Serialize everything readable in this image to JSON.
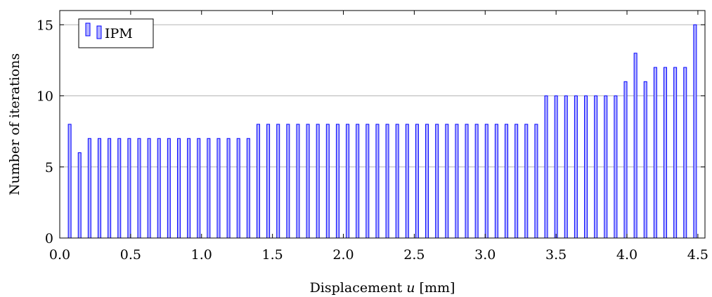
{
  "chart_data": {
    "type": "bar",
    "title": "",
    "xlabel": "Displacement ",
    "xlabel_var": "u",
    "xlabel_unit": " [mm]",
    "ylabel": "Number of iterations",
    "xlim": [
      0,
      4.55
    ],
    "ylim": [
      0,
      16
    ],
    "x_ticks": [
      "0.0",
      "0.5",
      "1.0",
      "1.5",
      "2.0",
      "2.5",
      "3.0",
      "3.5",
      "4.0",
      "4.5"
    ],
    "x_tick_values": [
      0,
      0.5,
      1.0,
      1.5,
      2.0,
      2.5,
      3.0,
      3.5,
      4.0,
      4.5
    ],
    "y_ticks": [
      "0",
      "5",
      "10",
      "15"
    ],
    "y_tick_values": [
      0,
      5,
      10,
      15
    ],
    "grid": "horizontal",
    "legend_position": "top-left",
    "series": [
      {
        "name": "IPM",
        "color": "#b3b3ff",
        "edge_color": "#0000ff",
        "x": [
          0.07,
          0.14,
          0.21,
          0.28,
          0.35,
          0.42,
          0.49,
          0.56,
          0.63,
          0.7,
          0.77,
          0.84,
          0.91,
          0.98,
          1.05,
          1.12,
          1.19,
          1.26,
          1.33,
          1.4,
          1.47,
          1.54,
          1.61,
          1.68,
          1.75,
          1.82,
          1.89,
          1.96,
          2.03,
          2.1,
          2.17,
          2.24,
          2.31,
          2.38,
          2.45,
          2.52,
          2.59,
          2.66,
          2.73,
          2.8,
          2.87,
          2.94,
          3.01,
          3.08,
          3.15,
          3.22,
          3.29,
          3.36,
          3.43,
          3.5,
          3.57,
          3.64,
          3.71,
          3.78,
          3.85,
          3.92,
          3.99,
          4.06,
          4.13,
          4.2,
          4.27,
          4.34,
          4.41,
          4.48
        ],
        "values": [
          8,
          6,
          7,
          7,
          7,
          7,
          7,
          7,
          7,
          7,
          7,
          7,
          7,
          7,
          7,
          7,
          7,
          7,
          7,
          8,
          8,
          8,
          8,
          8,
          8,
          8,
          8,
          8,
          8,
          8,
          8,
          8,
          8,
          8,
          8,
          8,
          8,
          8,
          8,
          8,
          8,
          8,
          8,
          8,
          8,
          8,
          8,
          8,
          10,
          10,
          10,
          10,
          10,
          10,
          10,
          10,
          11,
          13,
          11,
          12,
          12,
          12,
          12,
          15
        ]
      }
    ]
  }
}
